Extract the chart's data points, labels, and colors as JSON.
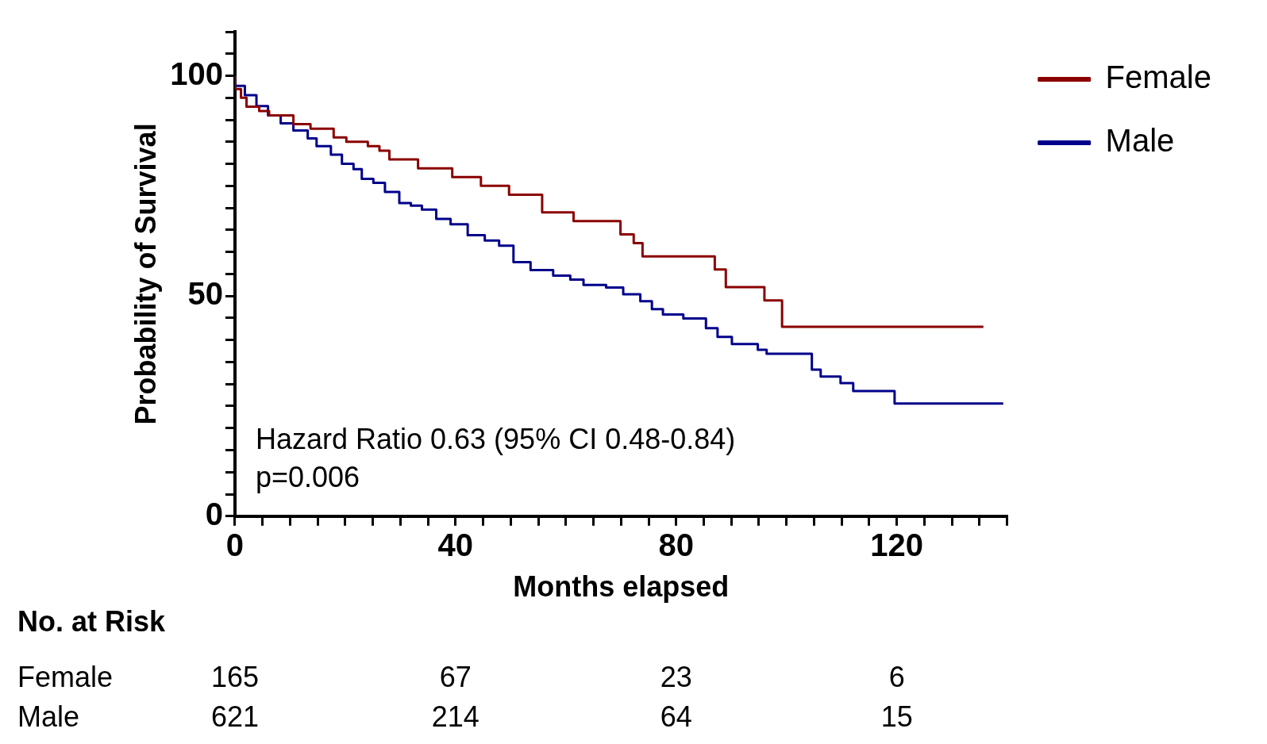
{
  "chart_data": {
    "type": "step",
    "xlabel": "Months elapsed",
    "ylabel": "Probability of Survival",
    "xlim": [
      0,
      140
    ],
    "xticks": [
      0,
      {
        "value": 5,
        "label": null
      },
      {
        "value": 10,
        "label": null
      },
      {
        "value": 15,
        "label": null
      },
      {
        "value": 20,
        "label": null
      },
      {
        "value": 25,
        "label": null
      },
      {
        "value": 30,
        "label": null
      },
      {
        "value": 35,
        "label": null
      },
      40,
      {
        "value": 45,
        "label": null
      },
      {
        "value": 50,
        "label": null
      },
      {
        "value": 55,
        "label": null
      },
      {
        "value": 60,
        "label": null
      },
      {
        "value": 65,
        "label": null
      },
      {
        "value": 70,
        "label": null
      },
      {
        "value": 75,
        "label": null
      },
      80,
      {
        "value": 85,
        "label": null
      },
      {
        "value": 90,
        "label": null
      },
      {
        "value": 95,
        "label": null
      },
      {
        "value": 100,
        "label": null
      },
      {
        "value": 105,
        "label": null
      },
      {
        "value": 110,
        "label": null
      },
      {
        "value": 115,
        "label": null
      },
      120,
      {
        "value": 125,
        "label": null
      },
      {
        "value": 130,
        "label": null
      },
      {
        "value": 135,
        "label": null
      },
      {
        "value": 140,
        "label": null
      }
    ],
    "ylim": [
      0,
      110
    ],
    "yticks": [
      0,
      {
        "value": 5,
        "label": null
      },
      {
        "value": 10,
        "label": null
      },
      {
        "value": 15,
        "label": null
      },
      {
        "value": 20,
        "label": null
      },
      {
        "value": 25,
        "label": null
      },
      {
        "value": 30,
        "label": null
      },
      {
        "value": 35,
        "label": null
      },
      {
        "value": 40,
        "label": null
      },
      {
        "value": 45,
        "label": null
      },
      50,
      {
        "value": 55,
        "label": null
      },
      {
        "value": 60,
        "label": null
      },
      {
        "value": 65,
        "label": null
      },
      {
        "value": 70,
        "label": null
      },
      {
        "value": 75,
        "label": null
      },
      {
        "value": 80,
        "label": null
      },
      {
        "value": 85,
        "label": null
      },
      {
        "value": 90,
        "label": null
      },
      {
        "value": 95,
        "label": null
      },
      100,
      {
        "value": 105,
        "label": null
      },
      {
        "value": 110,
        "label": null
      }
    ],
    "grid": false,
    "legend": "top right",
    "marker": "none",
    "line_style": "solid",
    "series": [
      {
        "name": "Female",
        "color": "#8b0000",
        "x": [
          0,
          1.1,
          2.1,
          4.4,
          6.2,
          10.6,
          13.7,
          17.9,
          20.2,
          24.1,
          26.2,
          28.0,
          33.2,
          39.4,
          44.6,
          49.7,
          55.7,
          61.4,
          69.9,
          72.3,
          73.9,
          87.0,
          89.0,
          96.0,
          99.2,
          113.2,
          135.7
        ],
        "values": [
          100,
          97,
          95,
          93,
          92,
          91,
          89,
          88,
          86,
          85,
          84,
          83,
          81,
          79,
          77,
          75,
          73,
          69,
          67,
          64,
          62,
          59,
          56,
          52,
          49,
          43,
          43
        ]
      },
      {
        "name": "Male",
        "color": "#00008b",
        "x": [
          0,
          1.8,
          3.9,
          6.0,
          8.3,
          10.6,
          13.2,
          14.8,
          17.4,
          19.4,
          21.5,
          23.0,
          25.1,
          27.2,
          29.8,
          31.9,
          33.9,
          36.5,
          39.1,
          42.2,
          45.3,
          47.9,
          50.5,
          53.6,
          57.7,
          60.8,
          63.2,
          67.3,
          70.4,
          73.5,
          75.6,
          77.6,
          81.3,
          85.4,
          87.5,
          90.1,
          94.8,
          96.4,
          104.6,
          106.2,
          109.8,
          112.1,
          119.6,
          124.7,
          139.3
        ],
        "values": [
          100,
          97.7,
          95.6,
          93.1,
          91,
          89.2,
          87.6,
          85.8,
          84,
          82.1,
          80,
          78.8,
          76.6,
          75.7,
          73.6,
          71.1,
          70.5,
          69.6,
          67.5,
          66.3,
          63.8,
          62.6,
          61.4,
          57.7,
          55.9,
          54.6,
          53.7,
          52.5,
          51.9,
          50.4,
          48.8,
          47,
          45.8,
          44.9,
          42.7,
          40.7,
          39.1,
          37.8,
          36.9,
          33.3,
          31.7,
          30.2,
          28.4,
          25.6,
          25.6
        ]
      }
    ],
    "annotations": [
      "Hazard Ratio 0.63 (95% CI 0.48-0.84)",
      "p=0.006",
      "No. at Risk",
      "Female",
      "165",
      "67",
      "23",
      "6",
      "Male",
      "621",
      "214",
      "64",
      "15"
    ]
  }
}
